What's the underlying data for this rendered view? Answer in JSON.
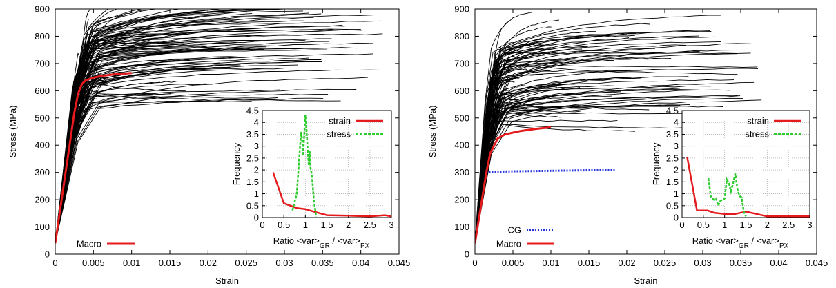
{
  "chart_data": [
    {
      "type": "line",
      "panel": "left",
      "xlabel": "Strain",
      "ylabel": "Stress (MPa)",
      "xlim": [
        0,
        0.045
      ],
      "ylim": [
        0,
        900
      ],
      "xticks": [
        "0",
        "0.005",
        "0.01",
        "0.015",
        "0.02",
        "0.025",
        "0.03",
        "0.035",
        "0.04",
        "0.045"
      ],
      "yticks": [
        "0",
        "100",
        "200",
        "300",
        "400",
        "500",
        "600",
        "700",
        "800",
        "900"
      ],
      "legend": {
        "position": "bottom-left",
        "entries": [
          {
            "name": "Macro",
            "color": "#e41a1c",
            "style": "solid"
          }
        ]
      },
      "grid": false,
      "series": [
        {
          "name": "Macro",
          "color": "#e41a1c",
          "x": [
            0,
            0.0025,
            0.003,
            0.0035,
            0.004,
            0.005,
            0.006,
            0.008,
            0.01
          ],
          "y": [
            40,
            520,
            590,
            625,
            638,
            648,
            654,
            661,
            665
          ]
        },
        {
          "name": "grain curves",
          "color": "#000000",
          "note": "approx. 120 individual grain stress-strain curves (black)",
          "yield_stress_range": [
            510,
            820
          ],
          "final_strain_range": [
            0.004,
            0.0435
          ]
        }
      ],
      "inset": {
        "type": "line",
        "xlabel": "Ratio <var>GR / <var>PX",
        "ylabel": "Frequency",
        "xlim": [
          0,
          3
        ],
        "ylim": [
          0,
          4.5
        ],
        "xticks": [
          "0",
          "0.5",
          "1",
          "1.5",
          "2",
          "2.5",
          "3"
        ],
        "yticks": [
          "0",
          "0.5",
          "1",
          "1.5",
          "2",
          "2.5",
          "3",
          "3.5",
          "4",
          "4.5"
        ],
        "grid": true,
        "legend": {
          "position": "top-right"
        },
        "series": [
          {
            "name": "strain",
            "color": "#e41a1c",
            "style": "solid",
            "x": [
              0.25,
              0.5,
              0.8,
              1.0,
              1.2,
              1.5,
              2.0,
              2.5,
              2.85,
              3.0
            ],
            "y": [
              1.9,
              0.6,
              0.4,
              0.35,
              0.25,
              0.1,
              0.08,
              0.05,
              0.1,
              0.05
            ]
          },
          {
            "name": "stress",
            "color": "#2ecc2e",
            "style": "dashed",
            "x": [
              0.7,
              0.8,
              0.85,
              0.9,
              0.93,
              0.95,
              0.98,
              1.0,
              1.02,
              1.05,
              1.08,
              1.1,
              1.12,
              1.15,
              1.2,
              1.25
            ],
            "y": [
              0.3,
              1.0,
              2.3,
              3.6,
              3.2,
              2.6,
              3.7,
              4.3,
              3.9,
              3.0,
              2.2,
              2.8,
              2.1,
              1.8,
              0.7,
              0.05
            ]
          }
        ]
      }
    },
    {
      "type": "line",
      "panel": "right",
      "xlabel": "Strain",
      "ylabel": "Stress (MPa)",
      "xlim": [
        0,
        0.045
      ],
      "ylim": [
        0,
        900
      ],
      "xticks": [
        "0",
        "0.005",
        "0.01",
        "0.015",
        "0.02",
        "0.025",
        "0.03",
        "0.035",
        "0.04",
        "0.045"
      ],
      "yticks": [
        "0",
        "100",
        "200",
        "300",
        "400",
        "500",
        "600",
        "700",
        "800",
        "900"
      ],
      "legend": {
        "position": "bottom-left",
        "entries": [
          {
            "name": "CG",
            "color": "#2233dd",
            "style": "dotted"
          },
          {
            "name": "Macro",
            "color": "#e41a1c",
            "style": "solid"
          }
        ]
      },
      "grid": false,
      "series": [
        {
          "name": "CG",
          "color": "#2233dd",
          "x": [
            0.0015,
            0.005,
            0.01,
            0.015,
            0.0185
          ],
          "y": [
            302,
            304,
            306,
            308,
            310
          ]
        },
        {
          "name": "Macro",
          "color": "#e41a1c",
          "x": [
            0,
            0.0015,
            0.002,
            0.003,
            0.004,
            0.006,
            0.008,
            0.01
          ],
          "y": [
            40,
            300,
            370,
            425,
            440,
            452,
            460,
            466
          ]
        },
        {
          "name": "grain curves",
          "color": "#000000",
          "note": "approx. 110 individual grain stress-strain curves (black)",
          "yield_stress_range": [
            460,
            745
          ],
          "final_strain_range": [
            0.004,
            0.038
          ]
        }
      ],
      "inset": {
        "type": "line",
        "xlabel": "Ratio <var>GR / <var>PX",
        "ylabel": "Frequency",
        "xlim": [
          0,
          3
        ],
        "ylim": [
          0,
          4.5
        ],
        "xticks": [
          "0",
          "0.5",
          "1",
          "1.5",
          "2",
          "2.5",
          "3"
        ],
        "yticks": [
          "0",
          "0.5",
          "1",
          "1.5",
          "2",
          "2.5",
          "3",
          "3.5",
          "4",
          "4.5"
        ],
        "grid": true,
        "legend": {
          "position": "top-right"
        },
        "series": [
          {
            "name": "strain",
            "color": "#e41a1c",
            "style": "solid",
            "x": [
              0.12,
              0.35,
              0.6,
              0.75,
              1.0,
              1.25,
              1.5,
              2.0,
              2.5,
              3.0
            ],
            "y": [
              2.55,
              0.3,
              0.3,
              0.2,
              0.15,
              0.15,
              0.25,
              0.05,
              0.05,
              0.05
            ]
          },
          {
            "name": "stress",
            "color": "#2ecc2e",
            "style": "dashed",
            "x": [
              0.62,
              0.68,
              0.75,
              0.8,
              0.85,
              0.9,
              0.95,
              1.0,
              1.05,
              1.1,
              1.15,
              1.2,
              1.25,
              1.3,
              1.35,
              1.4,
              1.45,
              1.5
            ],
            "y": [
              1.65,
              0.85,
              0.75,
              0.8,
              0.5,
              0.7,
              0.75,
              0.8,
              1.6,
              1.45,
              1.1,
              1.45,
              1.85,
              1.2,
              0.9,
              0.85,
              0.25,
              0.05
            ]
          }
        ]
      }
    }
  ]
}
